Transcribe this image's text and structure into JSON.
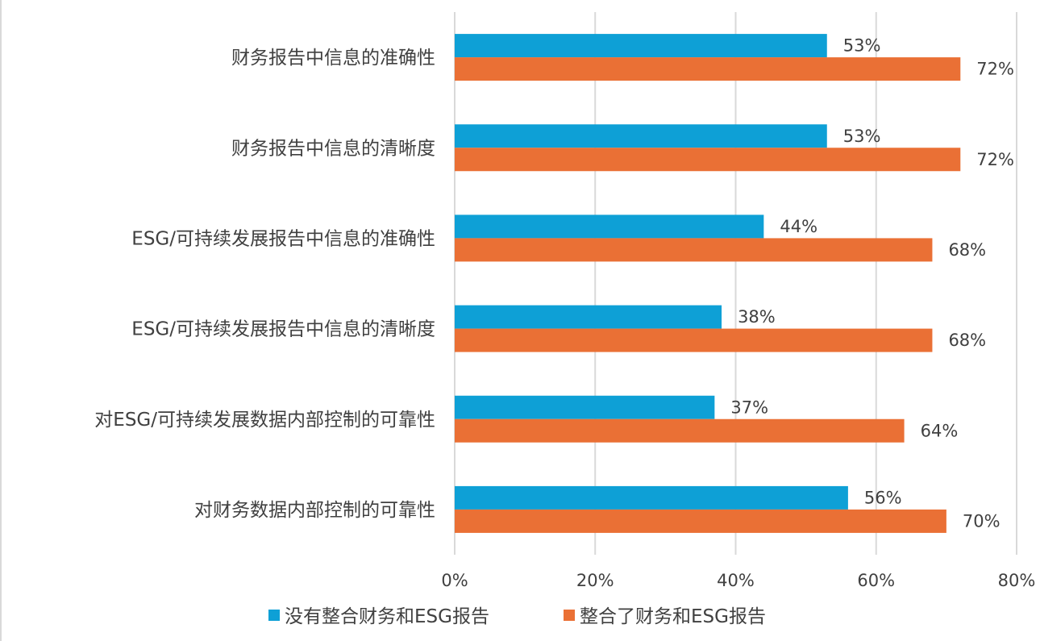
{
  "chart_data": {
    "type": "bar",
    "orientation": "horizontal",
    "categories": [
      "财务报告中信息的准确性",
      "财务报告中信息的清晰度",
      "ESG/可持续发展报告中信息的准确性",
      "ESG/可持续发展报告中信息的清晰度",
      "对ESG/可持续发展数据内部控制的可靠性",
      "对财务数据内部控制的可靠性"
    ],
    "series": [
      {
        "name": "没有整合财务和ESG报告",
        "values": [
          53,
          53,
          44,
          38,
          37,
          56
        ],
        "color": "#0ea0d6"
      },
      {
        "name": "整合了财务和ESG报告",
        "values": [
          72,
          72,
          68,
          68,
          64,
          70
        ],
        "color": "#ea7035"
      }
    ],
    "xlim": [
      0,
      80
    ],
    "ticks": [
      0,
      20,
      40,
      60,
      80
    ],
    "tick_suffix": "%",
    "value_suffix": "%",
    "grid": true,
    "legend_position": "bottom",
    "grid_color": "#d9d9d9"
  }
}
